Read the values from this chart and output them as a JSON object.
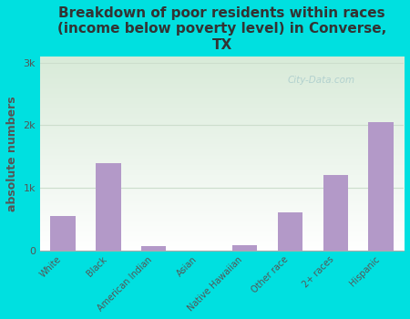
{
  "categories": [
    "White",
    "Black",
    "American Indian",
    "Asian",
    "Native Hawaiian",
    "Other race",
    "2+ races",
    "Hispanic"
  ],
  "values": [
    550,
    1400,
    60,
    0,
    80,
    600,
    1200,
    2050
  ],
  "bar_color": "#b399c8",
  "background_outer": "#00e0e0",
  "title": "Breakdown of poor residents within races\n(income below poverty level) in Converse,\nTX",
  "ylabel": "absolute numbers",
  "ylim": [
    0,
    3100
  ],
  "ytick_labels": [
    "0",
    "1k",
    "2k",
    "3k"
  ],
  "ytick_values": [
    0,
    1000,
    2000,
    3000
  ],
  "grid_color": "#ccddcc",
  "title_fontsize": 11,
  "ylabel_fontsize": 9,
  "tick_fontsize": 8,
  "watermark": "City-Data.com"
}
